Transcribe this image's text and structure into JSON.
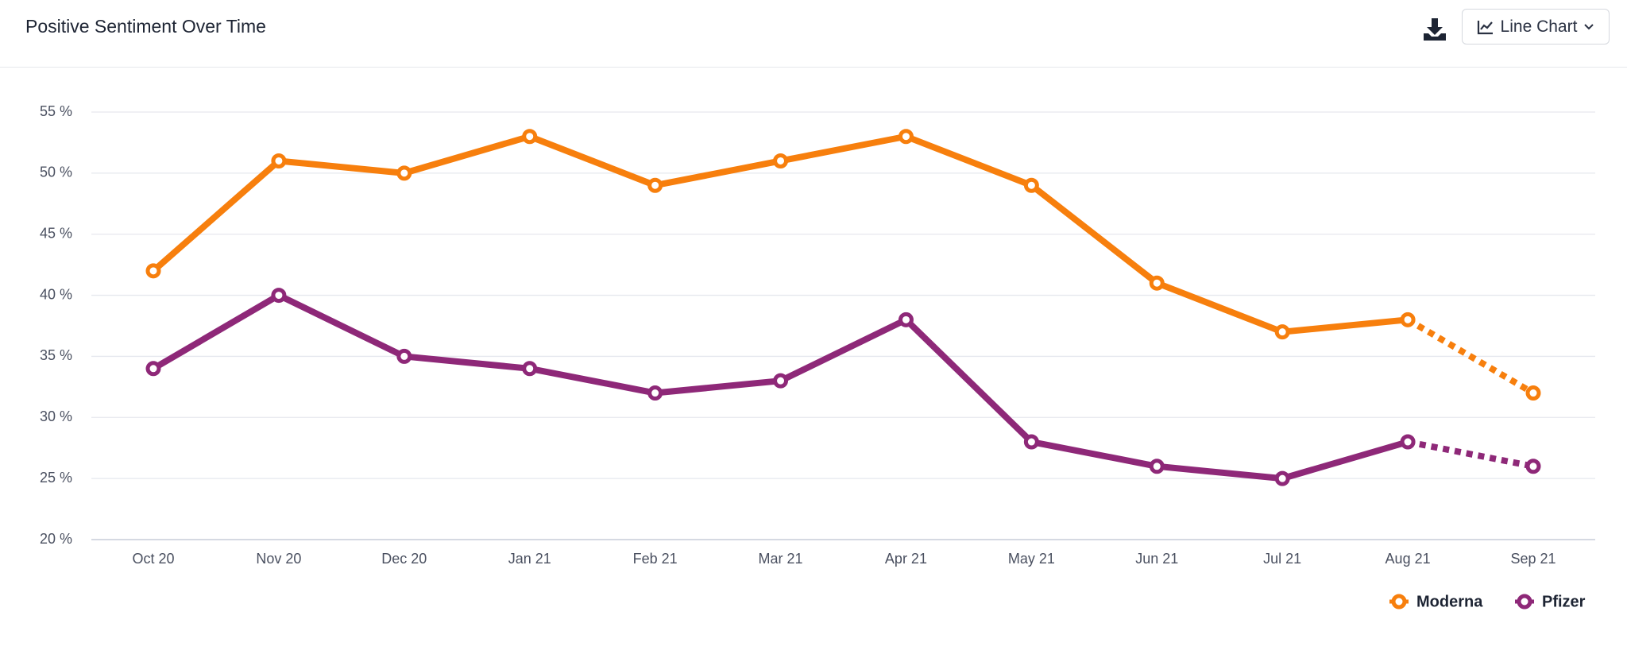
{
  "chart_data": {
    "type": "line",
    "title": "Positive Sentiment Over Time",
    "categories": [
      "Oct 20",
      "Nov 20",
      "Dec 20",
      "Jan 21",
      "Feb 21",
      "Mar 21",
      "Apr 21",
      "May 21",
      "Jun 21",
      "Jul 21",
      "Aug 21",
      "Sep 21"
    ],
    "series": [
      {
        "name": "Moderna",
        "color": "#f77f0d",
        "values": [
          42,
          51,
          50,
          53,
          49,
          51,
          53,
          49,
          41,
          37,
          38,
          32
        ]
      },
      {
        "name": "Pfizer",
        "color": "#8e2878",
        "values": [
          34,
          40,
          35,
          34,
          32,
          33,
          38,
          28,
          26,
          25,
          28,
          26
        ]
      }
    ],
    "ylim": [
      20,
      55
    ],
    "yticks": [
      {
        "value": 20,
        "label": "20 %"
      },
      {
        "value": 25,
        "label": "25 %"
      },
      {
        "value": 30,
        "label": "30 %"
      },
      {
        "value": 35,
        "label": "35 %"
      },
      {
        "value": 40,
        "label": "40 %"
      },
      {
        "value": 45,
        "label": "45 %"
      },
      {
        "value": 50,
        "label": "50 %"
      },
      {
        "value": 55,
        "label": "55 %"
      }
    ],
    "grid": true,
    "dashed_last_segment": true,
    "legend": "bottom-right"
  },
  "toolbar": {
    "chart_type_button": "Line Chart"
  }
}
